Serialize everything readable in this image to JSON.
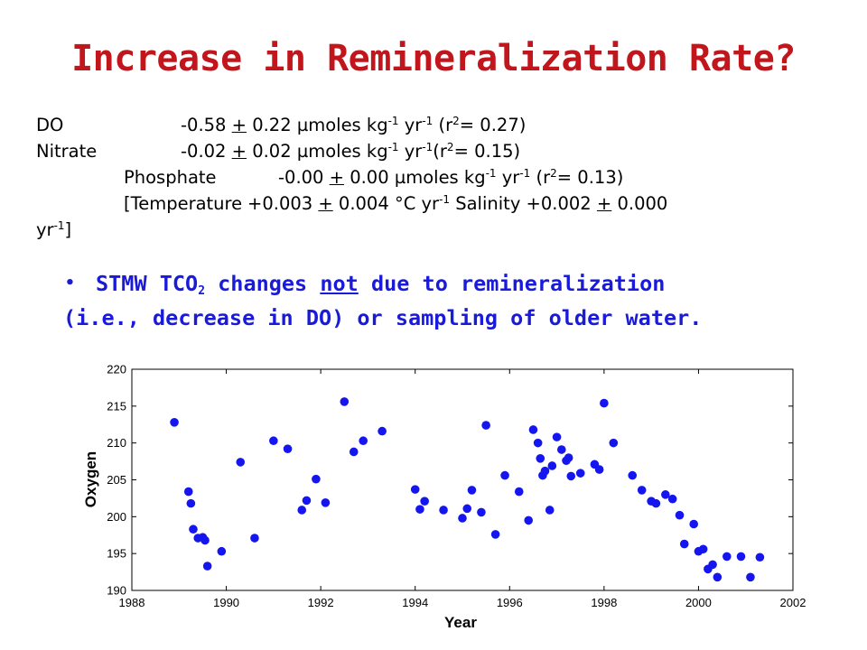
{
  "title": "Increase in Remineralization Rate?",
  "stats": {
    "do": {
      "label": "DO",
      "prefix": "-0.58 ",
      "pm": "+",
      "rest": " 0.22 µmoles kg",
      "e1": "-1",
      "mid": " yr",
      "e2": "-1",
      "r_open": " (r",
      "r_exp": "2",
      "r_close": "= 0.27)"
    },
    "nitrate": {
      "label": "Nitrate",
      "prefix": "-0.02 ",
      "pm": "+",
      "rest": " 0.02 µmoles kg",
      "e1": "-1",
      "mid": " yr",
      "e2": "-1",
      "r_open": "(r",
      "r_exp": "2",
      "r_close": "= 0.15)"
    },
    "phosphate": {
      "label": "Phosphate",
      "prefix": "-0.00 ",
      "pm": "+",
      "rest": " 0.00 µmoles kg",
      "e1": "-1",
      "mid": " yr",
      "e2": "-1",
      "r_open": " (r",
      "r_exp": "2",
      "r_close": "= 0.13)"
    },
    "temperature": {
      "label": "[Temperature",
      "prefix": "+0.003 ",
      "pm": "+",
      "rest": " 0.004 °C yr",
      "e1": "-1",
      "sal": " Salinity +0.002 ",
      "pm2": "+",
      "rest2": " 0.000",
      "wrap": "yr",
      "e2": "-1",
      "end": "]"
    }
  },
  "bullet": {
    "dot": "•",
    "l1a": "STMW TCO",
    "l1sub": "2",
    "l1b": " changes ",
    "l1not": "not",
    "l1c": " due to remineralization",
    "l2": "(i.e., decrease in DO) or sampling of older water."
  },
  "colors": {
    "title": "#c0161c",
    "bullet": "#1a1adb",
    "points": "#1515f0"
  },
  "chart_data": {
    "type": "scatter",
    "xlabel": "Year",
    "ylabel": "Oxygen",
    "xlim": [
      1988,
      2002
    ],
    "ylim": [
      190,
      220
    ],
    "xticks": [
      1988,
      1990,
      1992,
      1994,
      1996,
      1998,
      2000,
      2002
    ],
    "yticks": [
      190,
      195,
      200,
      205,
      210,
      215,
      220
    ],
    "grid": false,
    "points": [
      [
        1988.9,
        212.8
      ],
      [
        1989.2,
        203.4
      ],
      [
        1989.25,
        201.8
      ],
      [
        1989.3,
        198.3
      ],
      [
        1989.4,
        197.1
      ],
      [
        1989.5,
        197.2
      ],
      [
        1989.55,
        196.8
      ],
      [
        1989.6,
        193.3
      ],
      [
        1989.9,
        195.3
      ],
      [
        1990.3,
        207.4
      ],
      [
        1990.6,
        197.1
      ],
      [
        1991.0,
        210.3
      ],
      [
        1991.3,
        209.2
      ],
      [
        1991.6,
        200.9
      ],
      [
        1991.7,
        202.2
      ],
      [
        1991.9,
        205.1
      ],
      [
        1992.1,
        201.9
      ],
      [
        1992.5,
        215.6
      ],
      [
        1992.7,
        208.8
      ],
      [
        1992.9,
        210.3
      ],
      [
        1993.3,
        211.6
      ],
      [
        1994.0,
        203.7
      ],
      [
        1994.1,
        201.0
      ],
      [
        1994.2,
        202.1
      ],
      [
        1994.6,
        200.9
      ],
      [
        1995.0,
        199.8
      ],
      [
        1995.1,
        201.1
      ],
      [
        1995.2,
        203.6
      ],
      [
        1995.4,
        200.6
      ],
      [
        1995.5,
        212.4
      ],
      [
        1995.7,
        197.6
      ],
      [
        1995.9,
        205.6
      ],
      [
        1996.2,
        203.4
      ],
      [
        1996.4,
        199.5
      ],
      [
        1996.5,
        211.8
      ],
      [
        1996.6,
        210.0
      ],
      [
        1996.65,
        207.9
      ],
      [
        1996.7,
        205.6
      ],
      [
        1996.75,
        206.2
      ],
      [
        1996.85,
        200.9
      ],
      [
        1996.9,
        206.9
      ],
      [
        1997.0,
        210.8
      ],
      [
        1997.1,
        209.1
      ],
      [
        1997.2,
        207.6
      ],
      [
        1997.25,
        208.0
      ],
      [
        1997.3,
        205.5
      ],
      [
        1997.5,
        205.9
      ],
      [
        1997.8,
        207.1
      ],
      [
        1997.9,
        206.4
      ],
      [
        1998.0,
        215.4
      ],
      [
        1998.2,
        210.0
      ],
      [
        1998.6,
        205.6
      ],
      [
        1998.8,
        203.6
      ],
      [
        1999.0,
        202.1
      ],
      [
        1999.1,
        201.8
      ],
      [
        1999.3,
        203.0
      ],
      [
        1999.45,
        202.4
      ],
      [
        1999.6,
        200.2
      ],
      [
        1999.7,
        196.3
      ],
      [
        1999.9,
        199.0
      ],
      [
        2000.0,
        195.3
      ],
      [
        2000.1,
        195.6
      ],
      [
        2000.2,
        192.9
      ],
      [
        2000.3,
        193.5
      ],
      [
        2000.4,
        191.8
      ],
      [
        2000.6,
        194.6
      ],
      [
        2000.9,
        194.6
      ],
      [
        2001.1,
        191.8
      ],
      [
        2001.3,
        194.5
      ]
    ]
  }
}
